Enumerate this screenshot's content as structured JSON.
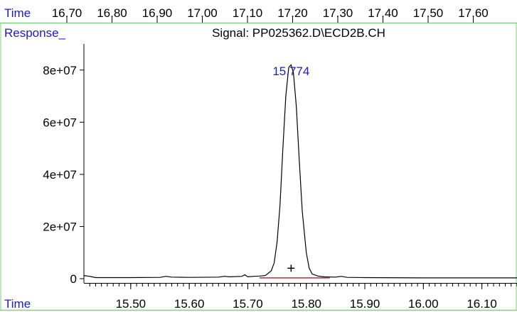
{
  "top_axis": {
    "label": "Time",
    "ticks": [
      "16.70",
      "16.80",
      "16.90",
      "17.00",
      "17.10",
      "17.20",
      "17.30",
      "17.40",
      "17.50",
      "17.60"
    ]
  },
  "chart_data": {
    "type": "line",
    "title": "Signal: PP025362.D\\ECD2B.CH",
    "xlabel": "Time",
    "ylabel": "Response_",
    "xlim": [
      15.42,
      16.16
    ],
    "ylim": [
      0,
      90000000
    ],
    "x_ticks": [
      "15.50",
      "15.60",
      "15.70",
      "15.80",
      "15.90",
      "16.00",
      "16.10"
    ],
    "y_ticks": [
      "0",
      "2e+07",
      "4e+07",
      "6e+07",
      "8e+07"
    ],
    "y_tick_values": [
      0,
      20000000,
      40000000,
      60000000,
      80000000
    ],
    "grid": false,
    "series": [
      {
        "x": [
          15.42,
          15.43,
          15.44,
          15.5,
          15.55,
          15.56,
          15.57,
          15.6,
          15.65,
          15.66,
          15.67,
          15.69,
          15.695,
          15.7,
          15.71,
          15.72,
          15.73,
          15.74,
          15.745,
          15.75,
          15.755,
          15.76,
          15.765,
          15.77,
          15.774,
          15.778,
          15.783,
          15.788,
          15.793,
          15.8,
          15.805,
          15.81,
          15.82,
          15.83,
          15.85,
          15.86,
          15.87,
          15.9,
          16.0,
          16.1,
          16.16
        ],
        "y": [
          1200000,
          900000,
          400000,
          400000,
          500000,
          900000,
          600000,
          500000,
          600000,
          900000,
          700000,
          900000,
          1500000,
          700000,
          900000,
          1000000,
          1200000,
          3000000,
          6000000,
          14000000,
          28000000,
          50000000,
          70000000,
          81000000,
          82000000,
          79000000,
          66000000,
          45000000,
          26000000,
          10000000,
          4000000,
          1800000,
          1000000,
          700000,
          600000,
          900000,
          500000,
          400000,
          300000,
          300000,
          300000
        ]
      }
    ],
    "peak": {
      "label": "15.774",
      "time": 15.774,
      "marker_y": 4000000
    },
    "baseline": {
      "x_start": 15.72,
      "x_end": 15.84,
      "y": 300000
    },
    "colors": {
      "accent_text": "#1a1ad6",
      "signal": "#000000",
      "baseline": "#e02020",
      "frame": "#7fd07f"
    }
  }
}
